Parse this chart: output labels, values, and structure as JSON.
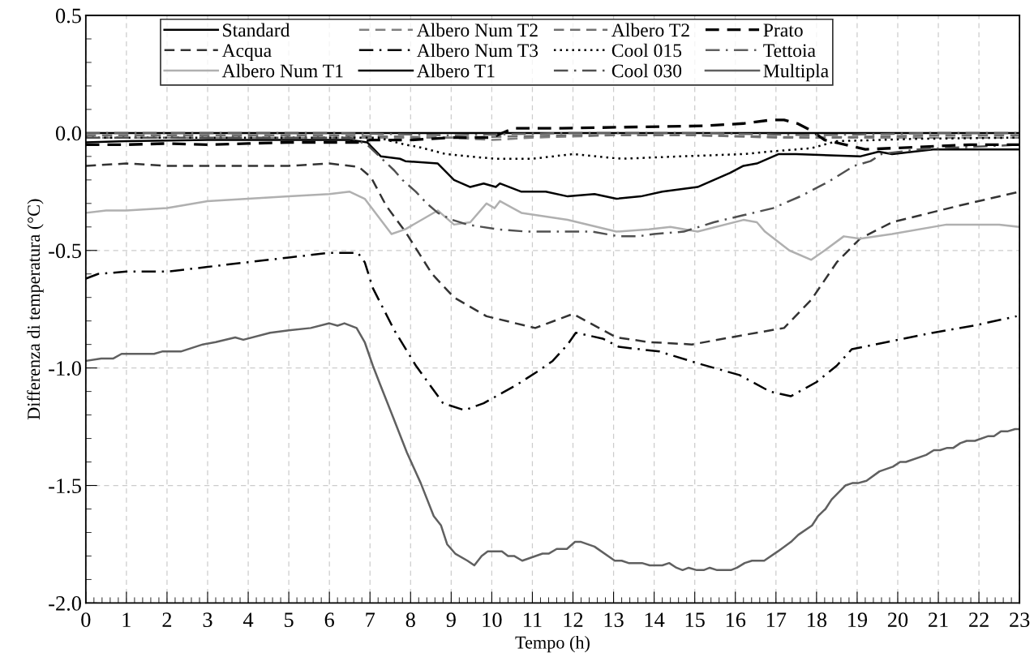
{
  "chart_data": {
    "type": "line",
    "xlabel": "Tempo (h)",
    "ylabel": "Differenza di temperatura (°C)",
    "xlim": [
      0,
      23
    ],
    "xticks": [
      0,
      1,
      2,
      3,
      4,
      5,
      6,
      7,
      8,
      9,
      10,
      11,
      12,
      13,
      14,
      15,
      16,
      17,
      18,
      19,
      20,
      21,
      22,
      23
    ],
    "ylim": [
      -2.0,
      0.5
    ],
    "yticks": [
      {
        "value": 0.5,
        "label": "0.5"
      },
      {
        "value": 0.0,
        "label": "0.0"
      },
      {
        "value": -0.5,
        "label": "-0.5"
      },
      {
        "value": -1.0,
        "label": "-1.0"
      },
      {
        "value": -1.5,
        "label": "-1.5"
      },
      {
        "value": -2.0,
        "label": "-2.0"
      }
    ],
    "grid": true,
    "legend": "top",
    "marker": "none",
    "series": [
      {
        "name": "Standard",
        "color": "#000000",
        "line_style": "solid",
        "x": [
          0,
          23
        ],
        "values": [
          0.0,
          0.0
        ]
      },
      {
        "name": "Acqua",
        "color": "#333333",
        "line_style": "dashed",
        "x": [
          0,
          1,
          2,
          3,
          4,
          5,
          6,
          6.73,
          7.03,
          7.4,
          7.87,
          8.53,
          9.07,
          9.87,
          11.07,
          12.0,
          13.07,
          13.87,
          14.93,
          16.2,
          17.2,
          17.87,
          18.5,
          19.07,
          19.86,
          21.5,
          23
        ],
        "values": [
          -0.14,
          -0.13,
          -0.14,
          -0.14,
          -0.14,
          -0.14,
          -0.13,
          -0.145,
          -0.19,
          -0.31,
          -0.42,
          -0.6,
          -0.7,
          -0.78,
          -0.83,
          -0.77,
          -0.87,
          -0.89,
          -0.9,
          -0.86,
          -0.83,
          -0.71,
          -0.55,
          -0.45,
          -0.38,
          -0.31,
          -0.25
        ]
      },
      {
        "name": "Albero Num T1",
        "color": "#b0b0b0",
        "line_style": "solid",
        "x": [
          0,
          0.5,
          1,
          2,
          3,
          4,
          5,
          6,
          6.5,
          6.87,
          7.53,
          7.87,
          8.67,
          9.07,
          9.47,
          9.87,
          10.07,
          10.2,
          10.73,
          11.87,
          13.07,
          13.87,
          14.4,
          15.07,
          16.2,
          16.53,
          16.73,
          17.33,
          17.87,
          18.2,
          18.67,
          19.07,
          19.86,
          21.2,
          22.5,
          23
        ],
        "values": [
          -0.34,
          -0.33,
          -0.33,
          -0.32,
          -0.29,
          -0.28,
          -0.27,
          -0.26,
          -0.25,
          -0.28,
          -0.43,
          -0.41,
          -0.33,
          -0.39,
          -0.38,
          -0.3,
          -0.32,
          -0.29,
          -0.34,
          -0.37,
          -0.42,
          -0.41,
          -0.4,
          -0.42,
          -0.37,
          -0.38,
          -0.42,
          -0.5,
          -0.54,
          -0.5,
          -0.44,
          -0.45,
          -0.43,
          -0.39,
          -0.39,
          -0.4
        ]
      },
      {
        "name": "Albero Num T2",
        "color": "#808080",
        "line_style": "dashed",
        "x": [
          0,
          3,
          6,
          9,
          10,
          11,
          13,
          15,
          17,
          19,
          21,
          23
        ],
        "values": [
          -0.02,
          -0.02,
          -0.02,
          -0.02,
          -0.03,
          -0.02,
          -0.01,
          -0.01,
          -0.02,
          -0.02,
          -0.02,
          -0.02
        ]
      },
      {
        "name": "Albero Num T3",
        "color": "#000000",
        "line_style": "dashdot",
        "x": [
          0,
          0.3,
          1,
          2,
          3,
          4,
          5,
          6,
          6.7,
          6.87,
          7.07,
          7.6,
          8.13,
          8.8,
          9.33,
          9.8,
          10.63,
          11.17,
          11.5,
          11.87,
          12.07,
          12.73,
          13.13,
          14.13,
          15.07,
          16.1,
          16.85,
          17.1,
          17.37,
          18.0,
          18.5,
          18.87,
          19.73,
          20.87,
          21.87,
          22.93
        ],
        "values": [
          -0.62,
          -0.6,
          -0.59,
          -0.59,
          -0.57,
          -0.55,
          -0.53,
          -0.51,
          -0.51,
          -0.55,
          -0.66,
          -0.84,
          -0.99,
          -1.15,
          -1.18,
          -1.15,
          -1.07,
          -1.01,
          -0.97,
          -0.9,
          -0.85,
          -0.875,
          -0.91,
          -0.93,
          -0.98,
          -1.03,
          -1.1,
          -1.11,
          -1.12,
          -1.06,
          -0.99,
          -0.92,
          -0.89,
          -0.85,
          -0.82,
          -0.78
        ]
      },
      {
        "name": "Albero T1",
        "color": "#000000",
        "line_style": "solid",
        "x": [
          0,
          1,
          3,
          6.5,
          6.93,
          7.27,
          7.74,
          7.87,
          8.67,
          9.07,
          9.47,
          9.8,
          10.1,
          10.2,
          10.73,
          11.33,
          11.87,
          12.53,
          13.07,
          13.67,
          14.2,
          15.07,
          15.87,
          16.2,
          16.53,
          17.07,
          17.5,
          19.07,
          19.53,
          19.86,
          20.87,
          23
        ],
        "values": [
          -0.04,
          -0.035,
          -0.03,
          -0.03,
          -0.04,
          -0.1,
          -0.11,
          -0.12,
          -0.13,
          -0.2,
          -0.23,
          -0.215,
          -0.23,
          -0.215,
          -0.25,
          -0.25,
          -0.27,
          -0.26,
          -0.28,
          -0.27,
          -0.25,
          -0.23,
          -0.17,
          -0.14,
          -0.13,
          -0.09,
          -0.09,
          -0.1,
          -0.08,
          -0.09,
          -0.07,
          -0.07
        ]
      },
      {
        "name": "Albero T2",
        "color": "#707070",
        "line_style": "dashed",
        "x": [
          0,
          3,
          6,
          9,
          12,
          15,
          18,
          21,
          23
        ],
        "values": [
          -0.01,
          -0.01,
          -0.01,
          -0.02,
          -0.01,
          -0.01,
          -0.02,
          -0.01,
          -0.01
        ]
      },
      {
        "name": "Cool 015",
        "color": "#000000",
        "line_style": "dotted",
        "x": [
          0,
          3,
          6,
          7.2,
          7.87,
          8.2,
          8.87,
          10.07,
          11.0,
          12.0,
          13.2,
          14.6,
          16.2,
          16.8,
          17.87,
          18.5,
          20.5,
          23
        ],
        "values": [
          -0.02,
          -0.02,
          -0.02,
          -0.02,
          -0.05,
          -0.06,
          -0.09,
          -0.11,
          -0.11,
          -0.09,
          -0.11,
          -0.1,
          -0.09,
          -0.08,
          -0.065,
          -0.035,
          -0.025,
          -0.02
        ]
      },
      {
        "name": "Cool 030",
        "color": "#505050",
        "line_style": "dashdot",
        "x": [
          0,
          3,
          6.5,
          6.93,
          7.6,
          7.8,
          8.13,
          8.4,
          8.67,
          9.03,
          9.4,
          10.13,
          10.87,
          11.67,
          12.47,
          13.13,
          13.6,
          14.0,
          14.73,
          15.47,
          16.2,
          16.93,
          17.6,
          18.27,
          18.93,
          19.33,
          19.6,
          20.5,
          23
        ],
        "values": [
          -0.02,
          -0.02,
          -0.02,
          -0.05,
          -0.16,
          -0.2,
          -0.25,
          -0.3,
          -0.34,
          -0.37,
          -0.39,
          -0.41,
          -0.42,
          -0.42,
          -0.42,
          -0.44,
          -0.44,
          -0.43,
          -0.42,
          -0.38,
          -0.35,
          -0.32,
          -0.27,
          -0.21,
          -0.14,
          -0.12,
          -0.09,
          -0.07,
          -0.05
        ]
      },
      {
        "name": "Prato",
        "color": "#000000",
        "line_style": "dashed",
        "x": [
          0,
          1,
          2,
          3,
          4,
          5,
          6,
          6.7,
          7,
          8,
          9,
          10,
          10.53,
          11.67,
          15.2,
          16.2,
          16.87,
          17.2,
          17.53,
          17.87,
          18.2,
          19.2,
          20.5,
          21.8,
          23
        ],
        "values": [
          -0.05,
          -0.05,
          -0.045,
          -0.05,
          -0.045,
          -0.04,
          -0.04,
          -0.04,
          -0.03,
          -0.03,
          -0.02,
          -0.02,
          0.02,
          0.02,
          0.03,
          0.04,
          0.055,
          0.055,
          0.04,
          0.01,
          -0.03,
          -0.07,
          -0.06,
          -0.05,
          -0.05
        ]
      },
      {
        "name": "Tettoia",
        "color": "#606060",
        "line_style": "dashdot",
        "x": [
          0,
          3,
          6,
          9,
          12,
          15,
          18,
          21,
          23
        ],
        "values": [
          0.0,
          0.0,
          0.0,
          -0.01,
          0.0,
          0.0,
          -0.01,
          0.0,
          0.0
        ]
      },
      {
        "name": "Multipla",
        "color": "#606060",
        "line_style": "solid",
        "x": [
          0,
          0.38,
          0.67,
          0.88,
          1.68,
          1.88,
          2.34,
          2.88,
          3.2,
          3.68,
          3.88,
          4.54,
          5.0,
          5.54,
          6.0,
          6.2,
          6.37,
          6.67,
          6.87,
          7.07,
          7.25,
          7.57,
          7.91,
          8.25,
          8.57,
          8.75,
          8.9,
          9.1,
          9.4,
          9.57,
          9.75,
          9.9,
          10.25,
          10.4,
          10.55,
          10.75,
          11.25,
          11.4,
          11.6,
          11.85,
          12.05,
          12.2,
          12.53,
          13.03,
          13.2,
          13.37,
          13.7,
          13.89,
          14.2,
          14.37,
          14.55,
          14.7,
          14.85,
          15.05,
          15.22,
          15.37,
          15.55,
          15.89,
          16.04,
          16.23,
          16.41,
          16.71,
          17.05,
          17.37,
          17.55,
          17.89,
          18.04,
          18.22,
          18.37,
          18.71,
          18.88,
          19.02,
          19.23,
          19.55,
          19.88,
          20.06,
          20.2,
          20.7,
          20.89,
          21.04,
          21.22,
          21.37,
          21.54,
          21.7,
          21.9,
          22.23,
          22.37,
          22.54,
          22.7,
          22.89,
          23
        ],
        "values": [
          -0.97,
          -0.96,
          -0.96,
          -0.94,
          -0.94,
          -0.93,
          -0.93,
          -0.9,
          -0.89,
          -0.87,
          -0.88,
          -0.85,
          -0.84,
          -0.83,
          -0.81,
          -0.82,
          -0.81,
          -0.83,
          -0.89,
          -0.99,
          -1.07,
          -1.21,
          -1.36,
          -1.49,
          -1.63,
          -1.67,
          -1.75,
          -1.79,
          -1.82,
          -1.84,
          -1.8,
          -1.78,
          -1.78,
          -1.8,
          -1.8,
          -1.82,
          -1.79,
          -1.79,
          -1.77,
          -1.77,
          -1.74,
          -1.74,
          -1.76,
          -1.82,
          -1.82,
          -1.83,
          -1.83,
          -1.84,
          -1.84,
          -1.83,
          -1.85,
          -1.86,
          -1.85,
          -1.86,
          -1.86,
          -1.85,
          -1.86,
          -1.86,
          -1.85,
          -1.83,
          -1.82,
          -1.82,
          -1.78,
          -1.74,
          -1.71,
          -1.67,
          -1.63,
          -1.6,
          -1.56,
          -1.5,
          -1.49,
          -1.49,
          -1.48,
          -1.44,
          -1.42,
          -1.4,
          -1.4,
          -1.37,
          -1.35,
          -1.35,
          -1.34,
          -1.34,
          -1.32,
          -1.31,
          -1.31,
          -1.29,
          -1.29,
          -1.27,
          -1.27,
          -1.26,
          -1.26
        ]
      }
    ]
  }
}
